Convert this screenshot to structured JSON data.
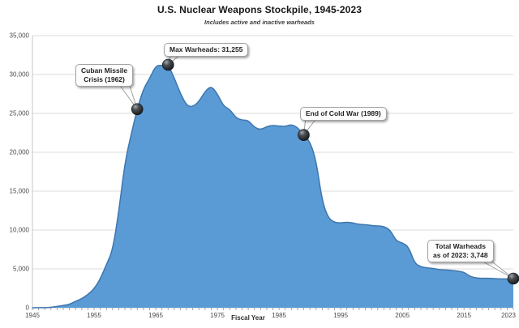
{
  "chart_data": {
    "type": "area",
    "title": "U.S. Nuclear Weapons Stockpile, 1945-2023",
    "subtitle": "Includes active and inactive warheads",
    "xlabel": "Fiscal Year",
    "ylabel": "",
    "xlim": [
      1945,
      2023
    ],
    "ylim": [
      0,
      35000
    ],
    "grid": "horizontal",
    "legend": "none",
    "xtick_values": [
      1945,
      1955,
      1965,
      1975,
      1985,
      1995,
      2005,
      2015,
      2023
    ],
    "xtick_labels": [
      "1945",
      "1955",
      "1965",
      "1975",
      "1985",
      "1995",
      "2005",
      "2015",
      "2023"
    ],
    "ytick_values": [
      0,
      5000,
      10000,
      15000,
      20000,
      25000,
      30000,
      35000
    ],
    "ytick_labels": [
      "0",
      "5,000",
      "10,000",
      "15,000",
      "20,000",
      "25,000",
      "30,000",
      "35,000"
    ],
    "series": [
      {
        "name": "U.S. nuclear warheads (active and inactive)",
        "x": [
          1945,
          1946,
          1947,
          1948,
          1949,
          1950,
          1951,
          1952,
          1953,
          1954,
          1955,
          1956,
          1957,
          1958,
          1959,
          1960,
          1961,
          1962,
          1963,
          1964,
          1965,
          1966,
          1967,
          1968,
          1969,
          1970,
          1971,
          1972,
          1973,
          1974,
          1975,
          1976,
          1977,
          1978,
          1979,
          1980,
          1981,
          1982,
          1983,
          1984,
          1985,
          1986,
          1987,
          1988,
          1989,
          1990,
          1991,
          1992,
          1993,
          1994,
          1995,
          1996,
          1997,
          1998,
          1999,
          2000,
          2001,
          2002,
          2003,
          2004,
          2005,
          2006,
          2007,
          2008,
          2009,
          2010,
          2011,
          2012,
          2013,
          2014,
          2015,
          2016,
          2017,
          2018,
          2019,
          2020,
          2021,
          2022,
          2023
        ],
        "values": [
          2,
          9,
          13,
          50,
          170,
          299,
          438,
          841,
          1169,
          1703,
          2422,
          3692,
          5543,
          7345,
          12298,
          18638,
          22229,
          25540,
          28133,
          29463,
          31139,
          31175,
          31255,
          29561,
          27552,
          26008,
          25830,
          26516,
          27835,
          28537,
          27519,
          25914,
          25542,
          24418,
          24138,
          24104,
          23208,
          22886,
          23305,
          23459,
          23368,
          23317,
          23575,
          23205,
          22217,
          21392,
          19008,
          13708,
          11511,
          10979,
          10904,
          11011,
          10903,
          10732,
          10685,
          10577,
          10526,
          10457,
          10027,
          8570,
          8360,
          7853,
          5709,
          5273,
          5113,
          5066,
          4897,
          4881,
          4804,
          4717,
          4571,
          4018,
          3822,
          3785,
          3805,
          3750,
          3708,
          3708,
          3748
        ]
      }
    ],
    "annotations": [
      {
        "id": "cuban",
        "lines": [
          "Cuban Missile",
          "Crisis (1962)"
        ],
        "year": 1962,
        "value": 25540
      },
      {
        "id": "max",
        "lines": [
          "Max Warheads:  31,255"
        ],
        "year": 1967,
        "value": 31255
      },
      {
        "id": "eocw",
        "lines": [
          "End of Cold War (1989)"
        ],
        "year": 1989,
        "value": 22217
      },
      {
        "id": "total",
        "lines": [
          "Total Warheads",
          "as of 2023: 3,748"
        ],
        "year": 2023,
        "value": 3748
      }
    ],
    "colors": {
      "area_fill": "#5B9BD5",
      "area_line": "#3D76AE",
      "gridline": "#DBDBDB",
      "axis_line": "#C4C4C4",
      "year_tick": "#8C8C8C",
      "tick_text": "#4A4A4A",
      "marker_dark": "#121417",
      "marker_light": "#A3AAB1",
      "callout_bg": "#FDFDFD",
      "callout_border": "#A1A1A1"
    }
  }
}
